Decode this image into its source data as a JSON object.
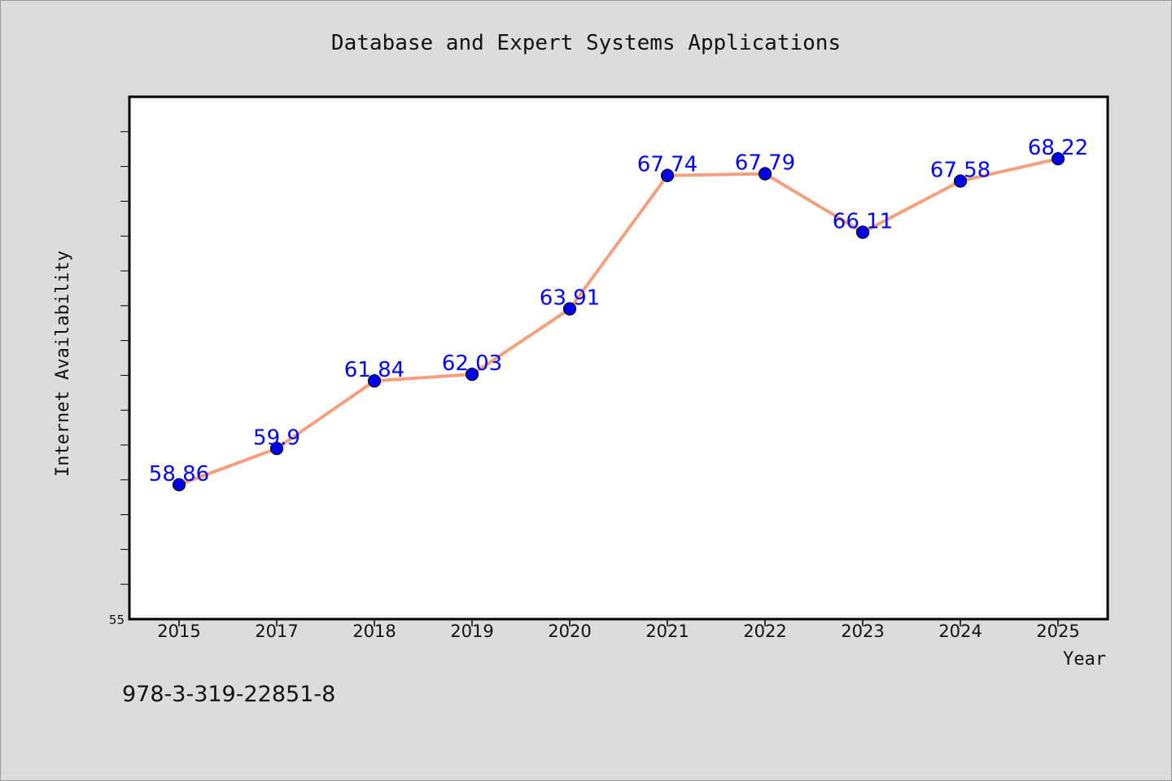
{
  "chart_data": {
    "type": "line",
    "title": "Database and Expert Systems Applications",
    "xlabel": "Year",
    "ylabel": "Internet Availability",
    "categories": [
      "2015",
      "2017",
      "2018",
      "2019",
      "2020",
      "2021",
      "2022",
      "2023",
      "2024",
      "2025"
    ],
    "series": [
      {
        "values": [
          58.86,
          59.9,
          61.84,
          62.03,
          63.91,
          67.74,
          67.79,
          66.11,
          67.58,
          68.22
        ],
        "data_labels": [
          "58.86",
          "59.9",
          "61.84",
          "62.03",
          "63.91",
          "67.74",
          "67.79",
          "66.11",
          "67.58",
          "68.22"
        ],
        "line_color": "#f4a07f",
        "marker_color": "#0000ee",
        "label_color": "#0000ee"
      }
    ],
    "ylim": [
      55,
      70
    ],
    "y_tick_labels_shown": [
      "55"
    ],
    "grid": false,
    "legend": "none"
  },
  "footer": {
    "isbn": "978-3-319-22851-8"
  }
}
